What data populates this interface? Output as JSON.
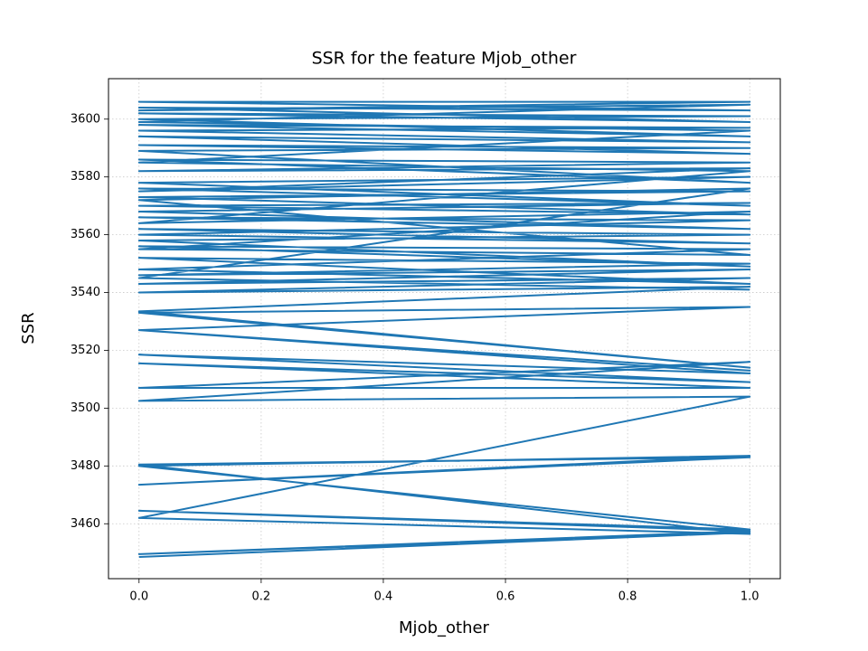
{
  "chart_data": {
    "type": "line",
    "title": "SSR for the feature Mjob_other",
    "x_label": "Mjob_other",
    "y_label": "SSR",
    "color": "#1f77b4",
    "grid": true,
    "x": [
      0,
      1,
      0,
      1,
      0,
      1,
      0,
      1,
      0,
      1,
      0,
      1,
      0,
      1,
      0,
      1,
      0,
      1,
      0,
      1,
      0,
      1,
      0,
      1,
      0,
      1,
      0,
      1,
      0,
      1,
      0,
      1,
      0,
      1,
      0,
      1,
      0,
      1,
      0,
      1,
      0,
      1,
      0,
      1,
      0,
      1,
      0,
      1,
      0,
      1,
      0,
      1,
      0,
      1,
      0,
      1,
      0,
      1,
      0,
      1,
      0,
      1,
      0,
      1,
      0,
      1,
      0,
      1,
      0,
      1,
      0,
      1,
      0,
      1,
      0,
      1,
      0,
      1,
      0,
      1,
      0,
      1,
      0,
      1,
      0,
      1,
      0,
      1,
      0,
      1,
      0,
      1,
      0,
      1,
      0,
      1,
      0,
      1
    ],
    "values": [
      3448.5,
      3457,
      3449.5,
      3457.5,
      3464.5,
      3458,
      3480,
      3483.5,
      3473.5,
      3483,
      3480.5,
      3456.5,
      3462,
      3504,
      3502.5,
      3516,
      3507,
      3507,
      3515.5,
      3509,
      3518.5,
      3512,
      3527,
      3513,
      3527,
      3535,
      3533,
      3514,
      3533.5,
      3542,
      3540,
      3545,
      3543,
      3548,
      3546,
      3550,
      3552,
      3543,
      3548,
      3555,
      3556,
      3549,
      3558,
      3560,
      3562,
      3557,
      3560,
      3565,
      3566,
      3562,
      3568,
      3571,
      3570,
      3567,
      3573,
      3575,
      3576,
      3570,
      3578,
      3580,
      3575,
      3583,
      3582,
      3585,
      3586,
      3578,
      3589,
      3590,
      3591,
      3588,
      3594,
      3592,
      3596,
      3597,
      3598,
      3594,
      3600,
      3601,
      3602,
      3599,
      3604,
      3603,
      3606,
      3606,
      3603,
      3605,
      3599,
      3596,
      3585,
      3582,
      3564,
      3568,
      3555,
      3553,
      3572,
      3576,
      3545,
      3541
    ],
    "xlim": [
      -0.05,
      1.05
    ],
    "ylim": [
      3441,
      3614
    ],
    "xticks": [
      {
        "value": 0,
        "label": "0.0"
      },
      0.2,
      0.4,
      0.6,
      0.8,
      {
        "value": 1,
        "label": "1.0"
      }
    ],
    "yticks": [
      3460,
      3480,
      3500,
      3520,
      3540,
      3560,
      3580,
      3600
    ]
  }
}
